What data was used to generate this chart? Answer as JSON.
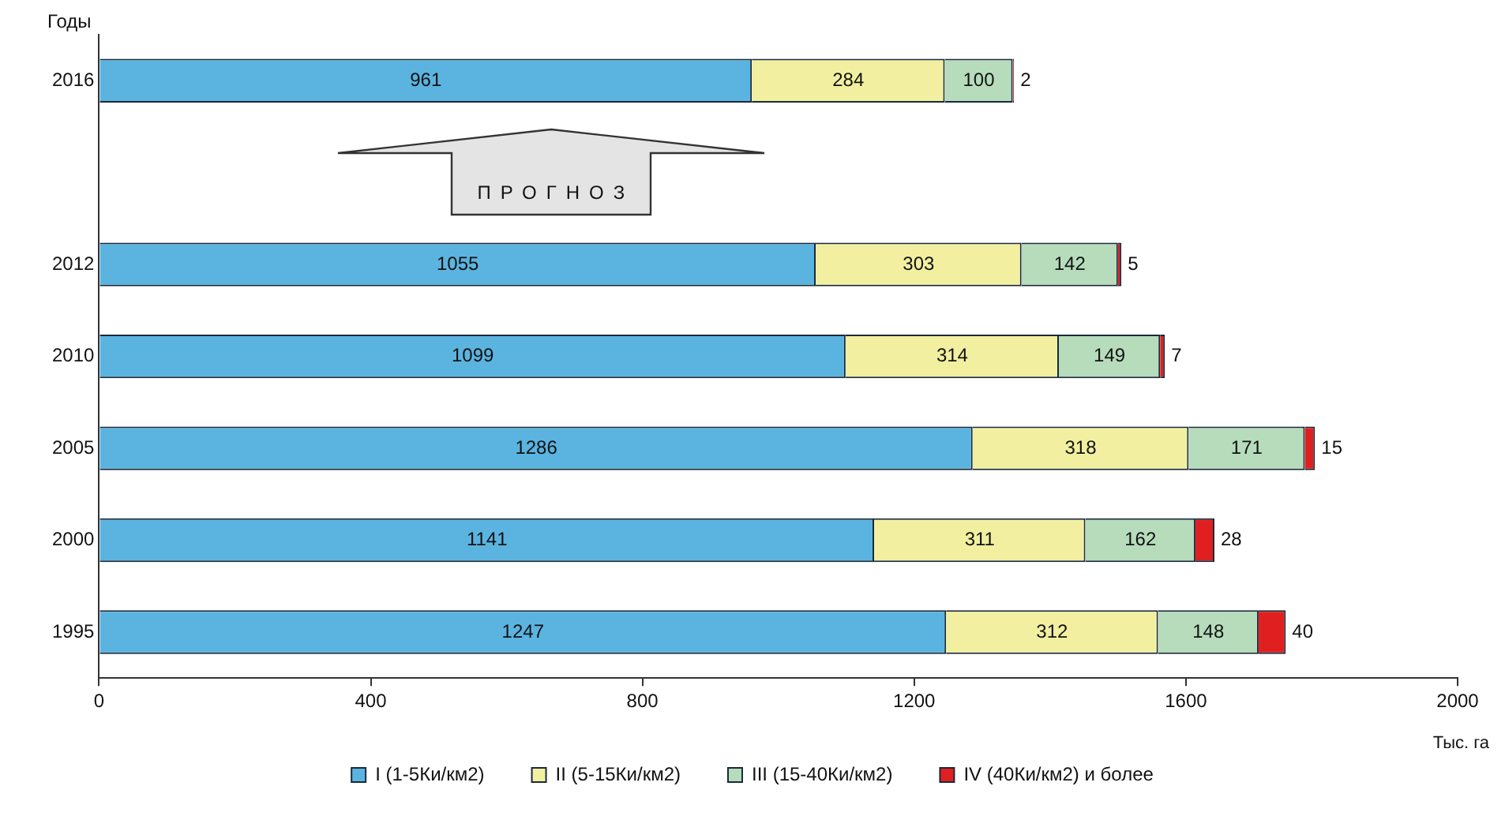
{
  "chart_data": {
    "type": "bar",
    "orientation": "horizontal",
    "stacked": true,
    "ylabel": "Годы",
    "xlabel": "Тыс. га",
    "categories": [
      "2016",
      null,
      "2012",
      "2010",
      "2005",
      "2000",
      "1995"
    ],
    "series": [
      {
        "name": "I (1-5Ки/км2)",
        "color": "#5bb4e0",
        "values": [
          961,
          null,
          1055,
          1099,
          1286,
          1141,
          1247
        ]
      },
      {
        "name": "II (5-15Ки/км2)",
        "color": "#f2f0a0",
        "values": [
          284,
          null,
          303,
          314,
          318,
          311,
          312
        ]
      },
      {
        "name": "III (15-40Ки/км2)",
        "color": "#b6dcbc",
        "values": [
          100,
          null,
          142,
          149,
          171,
          162,
          148
        ]
      },
      {
        "name": "IV (40Ки/км2) и более",
        "color": "#e02020",
        "values": [
          2,
          null,
          5,
          7,
          15,
          28,
          40
        ]
      }
    ],
    "xlim": [
      0,
      2000
    ],
    "xticks": [
      0,
      400,
      800,
      1200,
      1600,
      2000
    ],
    "data_labels": true,
    "legend": "bottom",
    "grid": false,
    "annotations": [
      "ПРОГНОЗ"
    ]
  }
}
